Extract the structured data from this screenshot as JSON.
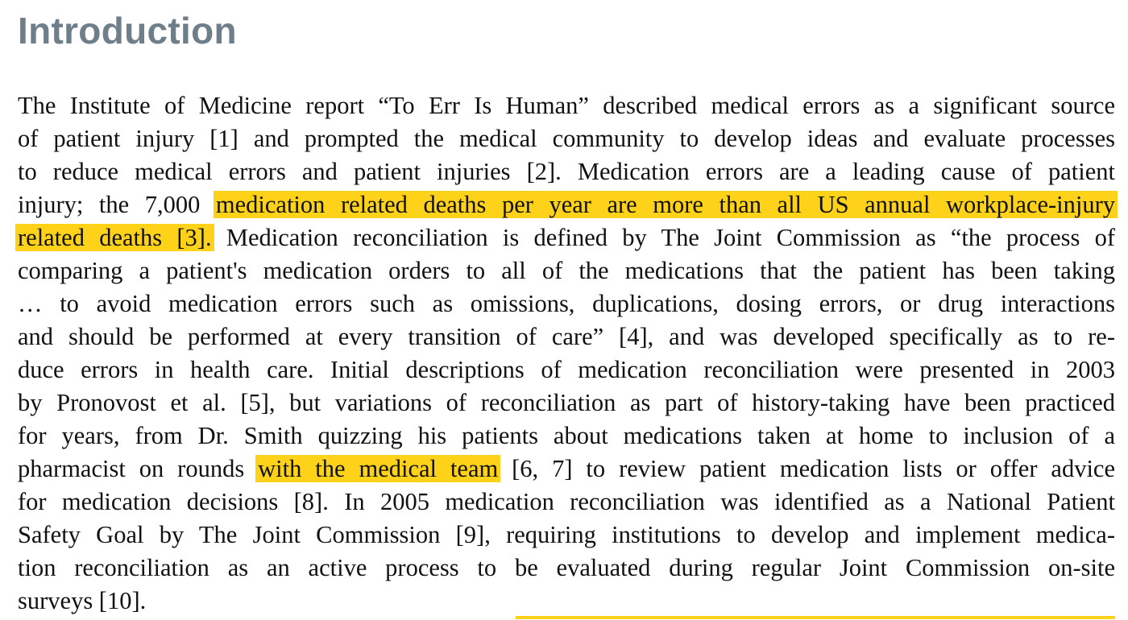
{
  "heading": "Introduction",
  "lines": [
    {
      "text": "The Institute of Medicine report “To Err Is Human” described medical errors as a significant source"
    },
    {
      "text": "of patient injury [1] and prompted the medical community to develop ideas and evaluate processes"
    },
    {
      "text": "to reduce medical errors and patient injuries [2]. Medication errors are a leading cause of patient"
    },
    {
      "pre": "injury; the 7,000 ",
      "highlight": "medication related deaths per year are more than all US annual workplace-injury"
    },
    {
      "highlight": "related deaths [3].",
      "post": " Medication reconciliation is defined by The Joint Commission as “the process of"
    },
    {
      "text": "comparing a patient's medication orders to all of the medications that the patient has been taking"
    },
    {
      "text": "… to avoid medication errors such as omissions, duplications, dosing errors, or drug interactions"
    },
    {
      "text": "and should be performed at every transition of care” [4], and was developed specifically as to re-"
    },
    {
      "text": "duce errors in health care. Initial descriptions of medication reconciliation were presented in 2003"
    },
    {
      "text": "by Pronovost et al. [5], but variations of reconciliation as part of history-taking have been practiced"
    },
    {
      "text": "for years, from Dr. Smith quizzing his patients about medications taken at home to inclusion of a"
    },
    {
      "pre": "pharmacist on rounds ",
      "highlight": "with the medical team",
      "post": " [6, 7] to review patient medication lists or offer advice"
    },
    {
      "text": "for medication decisions [8]. In 2005 medication reconciliation was identified as a National Patient"
    },
    {
      "text": "Safety Goal by The Joint Commission [9], requiring institutions to develop and implement medica-"
    },
    {
      "text": "tion reconciliation as an active process to be evaluated during regular Joint Commission on-site"
    },
    {
      "text": "surveys [10]."
    }
  ],
  "colors": {
    "heading": "#6f7f8a",
    "highlight": "#ffd21a",
    "text": "#111111"
  }
}
